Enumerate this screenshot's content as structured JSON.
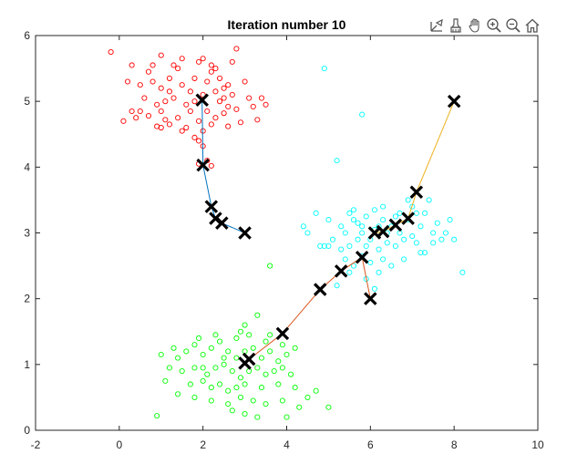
{
  "chart_data": {
    "type": "scatter",
    "title": "Iteration number 10",
    "xlabel": "",
    "ylabel": "",
    "xlim": [
      -2,
      10
    ],
    "ylim": [
      0,
      6
    ],
    "xticks": [
      -2,
      0,
      2,
      4,
      6,
      8,
      10
    ],
    "yticks": [
      0,
      1,
      2,
      3,
      4,
      5,
      6
    ],
    "grid": false,
    "legend": "none",
    "series": [
      {
        "color": "#ff0000",
        "marker": "circle-open",
        "values": [
          [
            -0.2,
            5.75
          ],
          [
            0.3,
            5.55
          ],
          [
            0.7,
            5.45
          ],
          [
            1.0,
            5.7
          ],
          [
            1.3,
            5.55
          ],
          [
            1.5,
            5.65
          ],
          [
            1.9,
            5.6
          ],
          [
            2.0,
            5.65
          ],
          [
            2.3,
            5.5
          ],
          [
            2.7,
            5.6
          ],
          [
            2.8,
            5.8
          ],
          [
            0.2,
            5.3
          ],
          [
            0.5,
            5.25
          ],
          [
            0.8,
            5.3
          ],
          [
            1.0,
            5.2
          ],
          [
            1.2,
            5.35
          ],
          [
            1.5,
            5.25
          ],
          [
            1.7,
            5.15
          ],
          [
            2.1,
            5.3
          ],
          [
            2.2,
            5.45
          ],
          [
            2.4,
            5.35
          ],
          [
            2.6,
            5.25
          ],
          [
            3.0,
            5.3
          ],
          [
            0.6,
            5.05
          ],
          [
            0.9,
            4.95
          ],
          [
            1.1,
            5.0
          ],
          [
            1.3,
            5.05
          ],
          [
            1.6,
            4.95
          ],
          [
            1.8,
            5.0
          ],
          [
            2.0,
            5.1
          ],
          [
            2.3,
            5.15
          ],
          [
            2.5,
            5.05
          ],
          [
            2.7,
            5.1
          ],
          [
            3.1,
            5.05
          ],
          [
            3.4,
            5.05
          ],
          [
            3.5,
            4.95
          ],
          [
            0.5,
            4.85
          ],
          [
            0.7,
            4.78
          ],
          [
            1.0,
            4.85
          ],
          [
            1.4,
            4.75
          ],
          [
            1.7,
            4.85
          ],
          [
            1.9,
            4.7
          ],
          [
            2.1,
            4.85
          ],
          [
            2.3,
            4.75
          ],
          [
            2.5,
            4.82
          ],
          [
            2.8,
            4.88
          ],
          [
            3.3,
            4.72
          ],
          [
            0.1,
            4.7
          ],
          [
            0.4,
            4.75
          ],
          [
            0.9,
            4.62
          ],
          [
            1.2,
            4.65
          ],
          [
            1.6,
            4.6
          ],
          [
            2.0,
            4.55
          ],
          [
            2.2,
            4.65
          ],
          [
            2.6,
            4.62
          ],
          [
            2.9,
            4.68
          ],
          [
            1.0,
            4.6
          ],
          [
            1.5,
            4.55
          ],
          [
            1.8,
            4.45
          ],
          [
            2.0,
            4.32
          ],
          [
            1.9,
            4.4
          ],
          [
            1.2,
            5.15
          ],
          [
            1.8,
            5.35
          ],
          [
            2.4,
            5.0
          ],
          [
            2.6,
            4.92
          ],
          [
            3.2,
            4.92
          ],
          [
            0.8,
            5.55
          ],
          [
            2.2,
            5.55
          ],
          [
            2.5,
            5.2
          ],
          [
            1.4,
            5.5
          ],
          [
            1.9,
            4.05
          ],
          [
            2.2,
            4.02
          ],
          [
            2.1,
            4.1
          ],
          [
            0.3,
            4.85
          ],
          [
            1.1,
            4.72
          ]
        ]
      },
      {
        "color": "#00ffff",
        "marker": "circle-open",
        "values": [
          [
            4.9,
            5.5
          ],
          [
            5.8,
            4.8
          ],
          [
            5.2,
            4.1
          ],
          [
            4.7,
            3.3
          ],
          [
            5.0,
            2.8
          ],
          [
            5.3,
            3.1
          ],
          [
            5.5,
            3.3
          ],
          [
            5.6,
            3.2
          ],
          [
            5.7,
            3.15
          ],
          [
            5.8,
            3.1
          ],
          [
            5.9,
            3.25
          ],
          [
            6.1,
            3.35
          ],
          [
            6.2,
            3.1
          ],
          [
            6.3,
            3.2
          ],
          [
            6.5,
            3.1
          ],
          [
            6.7,
            3.3
          ],
          [
            6.9,
            3.2
          ],
          [
            7.0,
            3.4
          ],
          [
            7.2,
            3.1
          ],
          [
            7.3,
            3.3
          ],
          [
            7.4,
            3.5
          ],
          [
            7.6,
            3.15
          ],
          [
            4.8,
            2.8
          ],
          [
            5.1,
            2.9
          ],
          [
            5.3,
            2.75
          ],
          [
            5.5,
            2.8
          ],
          [
            5.7,
            2.9
          ],
          [
            5.9,
            2.8
          ],
          [
            6.0,
            2.9
          ],
          [
            6.2,
            2.75
          ],
          [
            6.4,
            2.85
          ],
          [
            6.6,
            2.8
          ],
          [
            6.8,
            2.9
          ],
          [
            7.1,
            2.85
          ],
          [
            7.3,
            2.7
          ],
          [
            7.5,
            2.85
          ],
          [
            7.7,
            2.9
          ],
          [
            7.9,
            3.2
          ],
          [
            5.4,
            2.6
          ],
          [
            5.6,
            2.5
          ],
          [
            5.8,
            2.65
          ],
          [
            6.0,
            2.55
          ],
          [
            6.3,
            2.6
          ],
          [
            6.5,
            2.5
          ],
          [
            6.8,
            2.6
          ],
          [
            7.2,
            2.7
          ],
          [
            7.1,
            3.3
          ],
          [
            6.7,
            3.0
          ],
          [
            6.4,
            3.0
          ],
          [
            6.9,
            3.5
          ],
          [
            5.2,
            2.2
          ],
          [
            5.5,
            2.4
          ],
          [
            5.9,
            2.3
          ],
          [
            6.2,
            2.4
          ],
          [
            6.1,
            2.15
          ],
          [
            8.2,
            2.4
          ],
          [
            8.0,
            2.9
          ],
          [
            4.4,
            3.1
          ],
          [
            4.5,
            3.0
          ],
          [
            5.0,
            3.2
          ],
          [
            5.6,
            3.35
          ],
          [
            6.1,
            3.05
          ],
          [
            6.6,
            3.25
          ],
          [
            7.0,
            2.95
          ],
          [
            5.4,
            3.0
          ],
          [
            5.8,
            3.0
          ],
          [
            6.3,
            3.4
          ],
          [
            7.5,
            3.0
          ],
          [
            4.9,
            2.8
          ],
          [
            7.8,
            3.0
          ]
        ]
      },
      {
        "color": "#00ff00",
        "marker": "circle-open",
        "values": [
          [
            3.3,
            1.75
          ],
          [
            2.8,
            1.4
          ],
          [
            2.9,
            1.5
          ],
          [
            3.0,
            1.6
          ],
          [
            3.6,
            1.45
          ],
          [
            3.9,
            1.3
          ],
          [
            3.6,
            2.5
          ],
          [
            1.0,
            1.15
          ],
          [
            1.3,
            1.25
          ],
          [
            1.4,
            1.1
          ],
          [
            1.6,
            1.2
          ],
          [
            1.8,
            1.3
          ],
          [
            2.0,
            1.15
          ],
          [
            2.2,
            1.25
          ],
          [
            2.4,
            1.35
          ],
          [
            2.6,
            1.2
          ],
          [
            2.8,
            1.1
          ],
          [
            3.0,
            1.2
          ],
          [
            3.2,
            1.25
          ],
          [
            3.4,
            1.1
          ],
          [
            3.6,
            1.2
          ],
          [
            3.8,
            1.05
          ],
          [
            4.0,
            1.15
          ],
          [
            4.2,
            1.25
          ],
          [
            1.2,
            0.95
          ],
          [
            1.5,
            0.9
          ],
          [
            1.8,
            0.95
          ],
          [
            2.1,
            0.85
          ],
          [
            2.3,
            0.95
          ],
          [
            2.5,
            1.0
          ],
          [
            2.7,
            0.9
          ],
          [
            2.9,
            0.8
          ],
          [
            3.1,
            0.9
          ],
          [
            3.3,
            0.95
          ],
          [
            3.5,
            0.85
          ],
          [
            3.7,
            0.9
          ],
          [
            3.9,
            0.95
          ],
          [
            4.1,
            0.85
          ],
          [
            1.1,
            0.75
          ],
          [
            1.7,
            0.7
          ],
          [
            2.0,
            0.75
          ],
          [
            2.2,
            0.65
          ],
          [
            2.4,
            0.7
          ],
          [
            2.6,
            0.6
          ],
          [
            3.0,
            0.7
          ],
          [
            3.4,
            0.65
          ],
          [
            3.8,
            0.7
          ],
          [
            4.2,
            0.65
          ],
          [
            1.4,
            0.55
          ],
          [
            1.8,
            0.5
          ],
          [
            2.2,
            0.45
          ],
          [
            2.6,
            0.4
          ],
          [
            2.9,
            0.5
          ],
          [
            3.2,
            0.45
          ],
          [
            3.5,
            0.4
          ],
          [
            3.9,
            0.45
          ],
          [
            4.3,
            0.35
          ],
          [
            4.5,
            0.5
          ],
          [
            4.7,
            0.6
          ],
          [
            2.7,
            0.3
          ],
          [
            3.0,
            0.25
          ],
          [
            3.3,
            0.2
          ],
          [
            4.0,
            0.2
          ],
          [
            5.0,
            0.35
          ],
          [
            0.9,
            0.22
          ],
          [
            2.3,
            1.45
          ],
          [
            2.5,
            1.1
          ],
          [
            1.9,
            1.4
          ],
          [
            3.5,
            1.35
          ],
          [
            3.1,
            1.45
          ],
          [
            2.0,
            0.95
          ],
          [
            2.8,
            0.65
          ]
        ]
      }
    ],
    "centroid_paths": [
      {
        "color": "#0072bd",
        "points": [
          [
            3.0,
            3.0
          ],
          [
            2.45,
            3.15
          ],
          [
            2.3,
            3.22
          ],
          [
            2.2,
            3.4
          ],
          [
            2.0,
            4.03
          ],
          [
            1.98,
            5.02
          ]
        ]
      },
      {
        "color": "#edb120",
        "points": [
          [
            8.0,
            5.0
          ],
          [
            7.1,
            3.62
          ],
          [
            6.9,
            3.22
          ],
          [
            6.6,
            3.12
          ],
          [
            6.3,
            3.02
          ],
          [
            6.1,
            3.0
          ]
        ]
      },
      {
        "color": "#d95319",
        "points": [
          [
            6.0,
            2.0
          ],
          [
            5.8,
            2.63
          ],
          [
            5.3,
            2.42
          ],
          [
            4.8,
            2.14
          ],
          [
            3.9,
            1.47
          ],
          [
            3.1,
            1.08
          ],
          [
            3.0,
            1.02
          ]
        ]
      }
    ]
  },
  "toolbar": {
    "buttons": [
      {
        "name": "axes-edit-icon",
        "glyph": "axes"
      },
      {
        "name": "brush-icon",
        "glyph": "brush"
      },
      {
        "name": "pan-hand-icon",
        "glyph": "hand"
      },
      {
        "name": "zoom-in-icon",
        "glyph": "zoomin"
      },
      {
        "name": "zoom-out-icon",
        "glyph": "zoomout"
      },
      {
        "name": "home-icon",
        "glyph": "home"
      }
    ]
  }
}
